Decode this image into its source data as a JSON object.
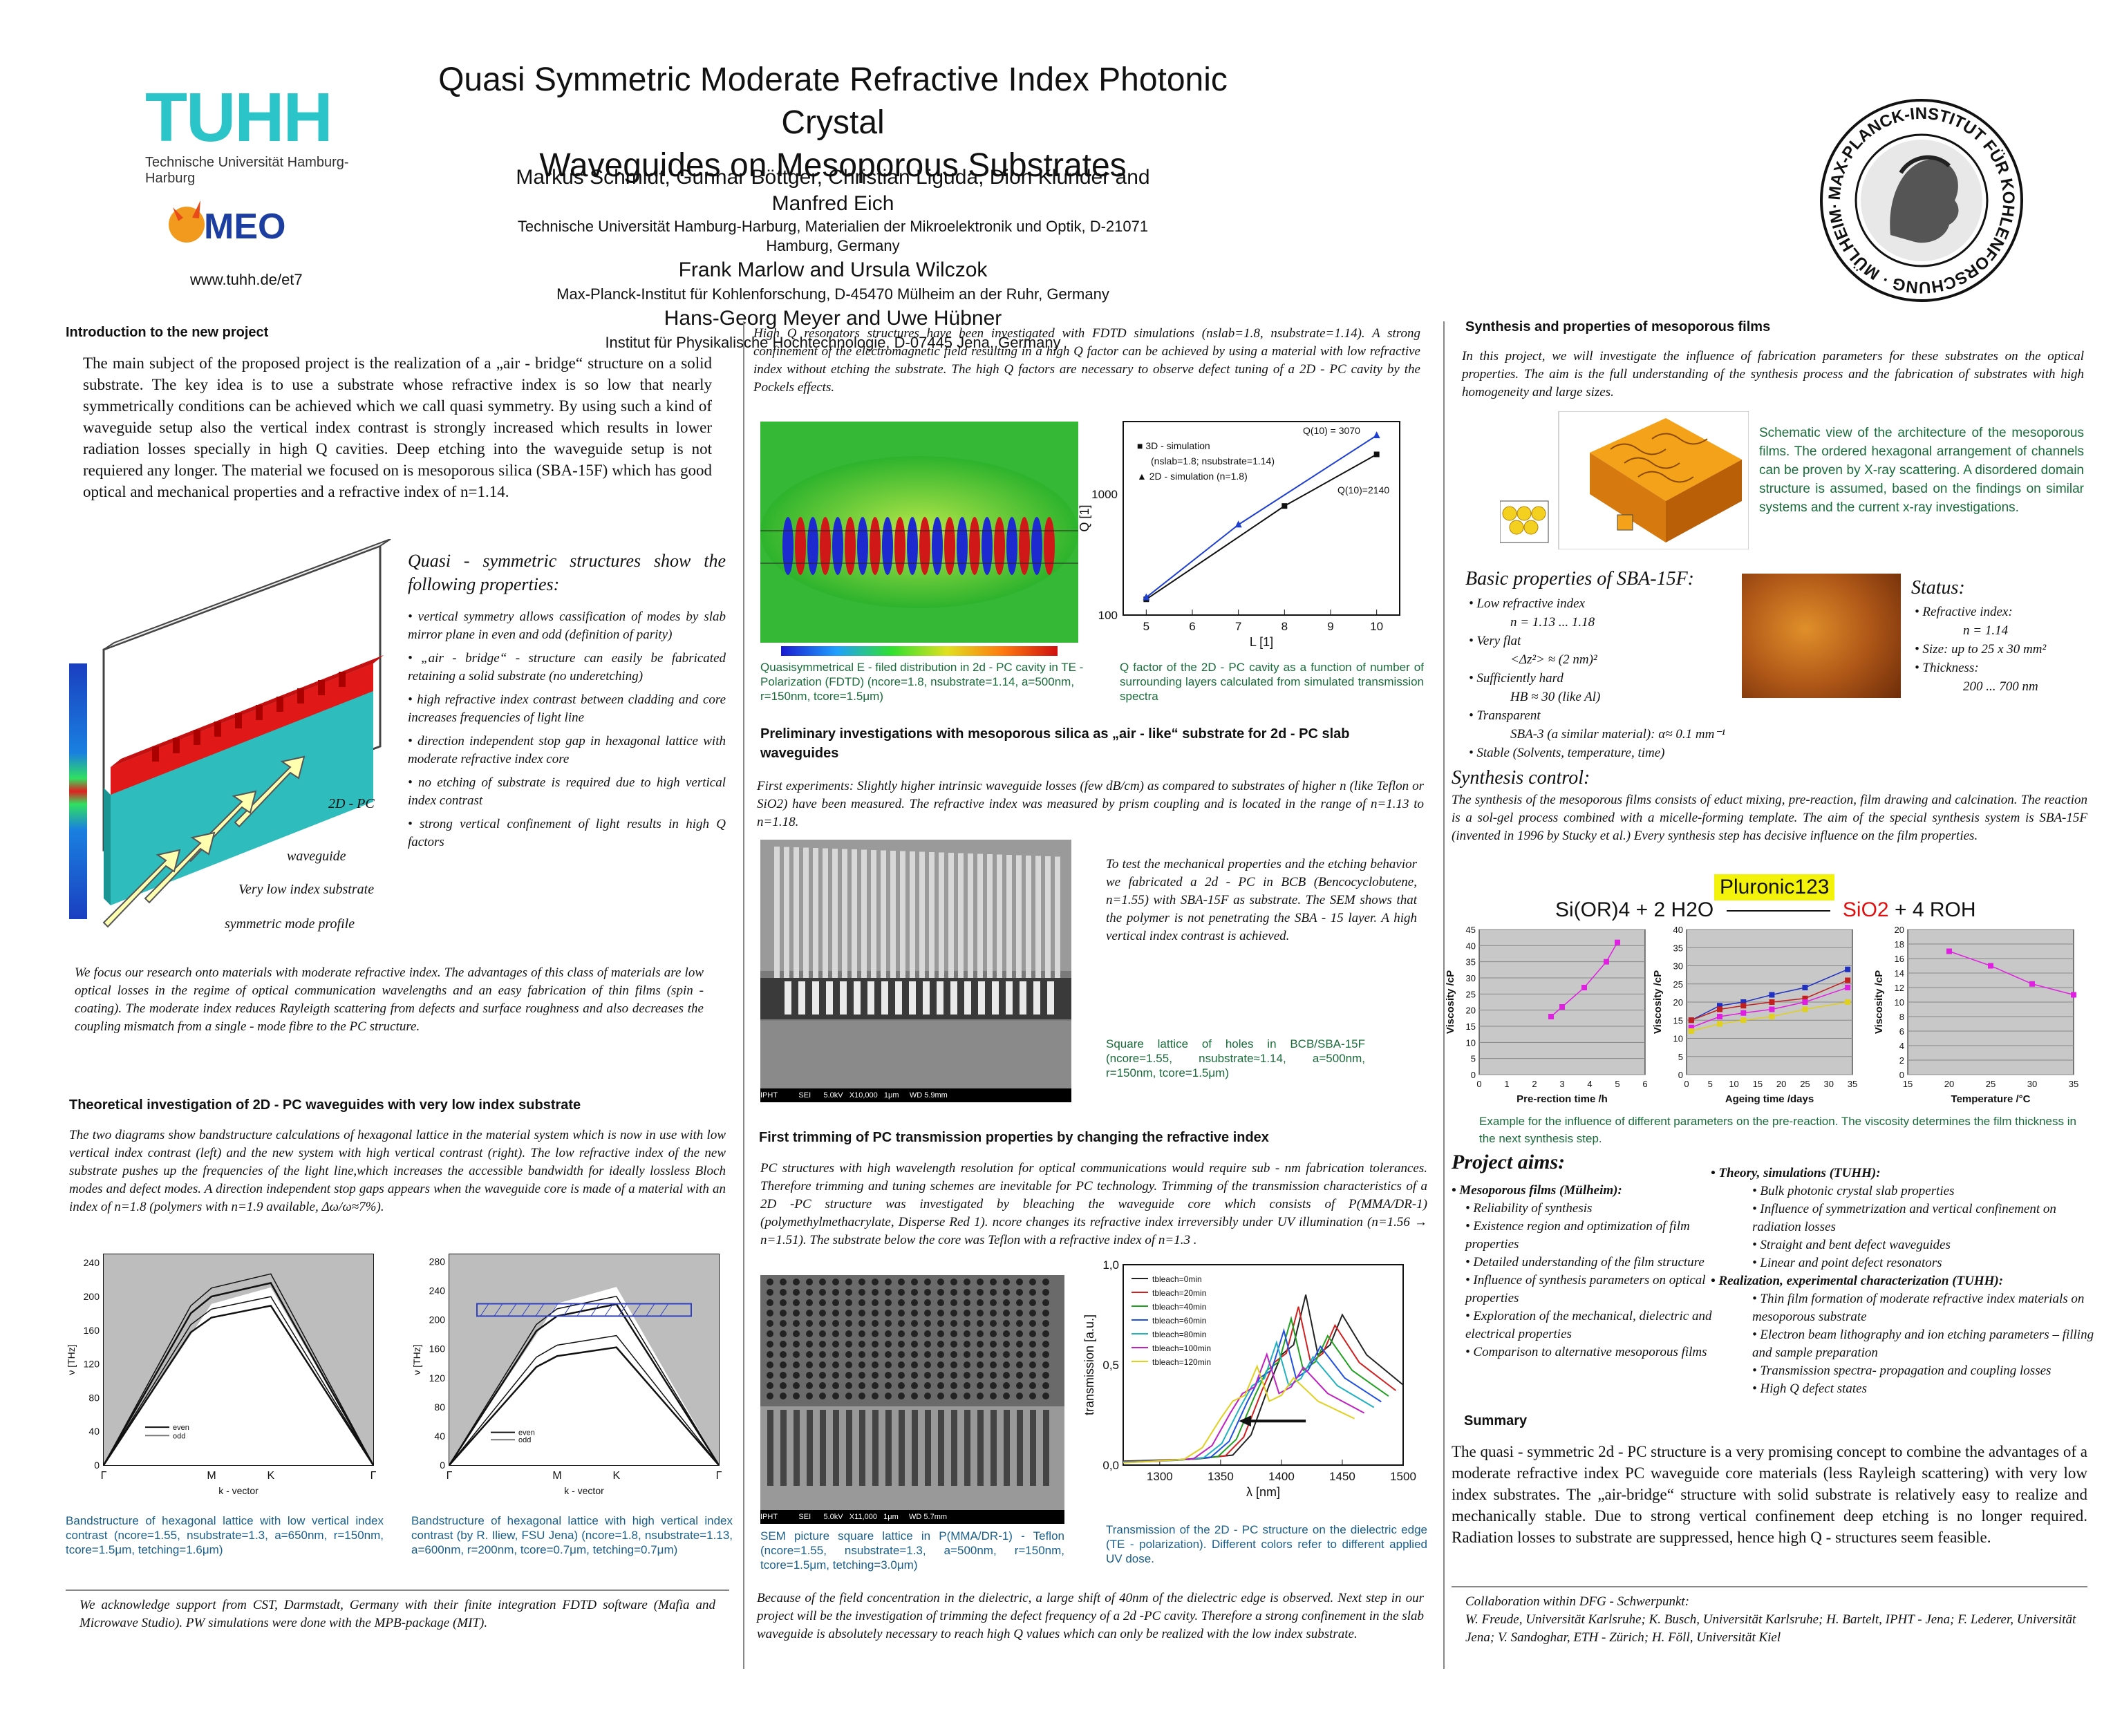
{
  "header": {
    "title_line1": "Quasi Symmetric Moderate Refractive Index Photonic Crystal",
    "title_line2": "Waveguides on Mesoporous Substrates",
    "authors1": "Markus Schmidt, Gunnar Böttger, Christian Liguda, Dion Klunder and Manfred Eich",
    "affil1": "Technische Universität Hamburg-Harburg, Materialien der Mikroelektronik und Optik, D-21071 Hamburg, Germany",
    "authors2": "Frank Marlow and Ursula Wilczok",
    "affil2": "Max-Planck-Institut für Kohlenforschung, D-45470 Mülheim an der Ruhr, Germany",
    "authors3": "Hans-Georg Meyer and Uwe Hübner",
    "affil3": "Institut für Physikalische Hochtechnologie, D-07445 Jena, Germany"
  },
  "logos": {
    "tuhh": "TUHH",
    "tuhh_sub": "Technische Universität Hamburg-Harburg",
    "meo": "MEO",
    "url": "www.tuhh.de/et7",
    "mpi_ring": "MAX-PLANCK-INSTITUT FÜR KOHLENFORSCHUNG · MÜLHEIM·RUHR ·"
  },
  "col1": {
    "intro_heading": "Introduction to the new project",
    "intro_text": "The main subject of the proposed project is the realization of a „air - bridge“ structure on a solid substrate. The key idea is to use a substrate whose refractive index is so low that nearly symmetrically conditions can be achieved which we call quasi symmetry. By using such a kind of waveguide setup also the vertical index contrast is strongly increased which results in lower radiation losses specially in high Q cavities. Deep etching into the waveguide setup is not requiered any longer. The material we focused on is mesoporous silica (SBA-15F) which has good optical and mechanical properties and a refractive index of n=1.14.",
    "quasi_heading": "Quasi - symmetric structures show the following properties:",
    "quasi_items": [
      "vertical symmetry allows cassification of modes by slab mirror plane in even and odd (definition of parity)",
      "„air - bridge“ - structure can easily be fabricated retaining a solid substrate (no underetching)",
      "high refractive index contrast between cladding and core increases frequencies of light line",
      "direction independent stop gap in hexagonal lattice with moderate refractive index core",
      "no etching of substrate is required due to high vertical index contrast",
      "strong vertical confinement of light results in high Q factors"
    ],
    "diagram_labels": {
      "pc": "2D - PC",
      "waveguide": "waveguide",
      "substrate": "Very low index substrate",
      "mode": "symmetric mode profile"
    },
    "focus_text": "We focus our research onto materials with moderate refractive index. The advantages of this class of materials are low optical losses in the regime of optical communication wavelengths and an easy fabrication of thin films (spin - coating). The moderate index reduces Rayleigth scattering from defects and surface roughness and also decreases the coupling mismatch from a single - mode fibre to the PC structure.",
    "theory_heading": "Theoretical investigation  of 2D - PC waveguides  with very low index substrate",
    "theory_text": "The two diagrams show bandstructure calculations of  hexagonal lattice in the material system which is now in use with low vertical index contrast (left) and the new system with high vertical contrast (right). The low refractive index of the new substrate pushes up the frequencies of the light line,which increases the accessible bandwidth for ideally lossless Bloch modes and defect modes. A direction independent stop gaps appears when the waveguide core is made of a material with an index of n=1.8 (polymers with n=1.9 available, Δω/ω≈7%).",
    "band_left_caption": "Bandstructure of hexagonal lattice with low vertical index contrast (ncore=1.55, nsubstrate=1.3, a=650nm, r=150nm, tcore=1.5μm, tetching=1.6μm)",
    "band_right_caption": "Bandstructure of hexagonal lattice with high vertical index contrast (by R. Iliew, FSU Jena) (ncore=1.8, nsubstrate=1.13, a=600nm, r=200nm, tcore=0.7μm, tetching=0.7μm)",
    "ack_text": "We acknowledge support from CST, Darmstadt, Germany with their finite integration FDTD software (Mafia and Microwave Studio). PW simulations were done with the MPB-package (MIT)."
  },
  "col2": {
    "fdtd_text": "High Q resonators structures have been investigated with FDTD simulations (nslab=1.8, nsubstrate=1.14). A strong confinement of the electromagnetic field resulting in a high Q factor can be achieved by using a material with low refractive index without etching the substrate. The high Q factors are necessary to observe defect tuning of a 2D - PC cavity by the Pockels effects.",
    "efield_caption": "Quasisymmetrical E - filed distribution in 2d - PC cavity in TE - Polarization (FDTD) (ncore=1.8, nsubstrate=1.14, a=500nm, r=150nm, tcore=1.5μm)",
    "q_caption": "Q factor of the 2D - PC cavity as a function of number of surrounding layers calculated from simulated transmission spectra",
    "prelim_heading": "Preliminary investigations with mesoporous silica as „air - like“ substrate for 2d - PC slab waveguides",
    "prelim_text": "First experiments: Slightly higher intrinsic waveguide losses (few dB/cm) as compared to substrates of higher n (like Teflon or SiO2) have been measured. The refractive index was measured by prism coupling and is located in the range of n=1.13 to n=1.18.",
    "bcb_text": "To test the mechanical properties and the etching behavior we fabricated a 2d - PC in BCB (Bencocyclobutene, n=1.55) with SBA-15F as substrate. The SEM shows that the polymer is not penetrating the SBA - 15 layer. A high vertical index contrast is achieved.",
    "sem1_caption": "Square lattice of holes in BCB/SBA-15F (ncore=1.55, nsubstrate≈1.14, a=500nm, r=150nm, tcore=1.5μm)",
    "sem1_bar": "IPHT          SEI      5.0kV   X10,000   1μm     WD 5.9mm",
    "trim_heading": "First trimming of PC transmission properties by changing the refractive index",
    "trim_text": "PC structures with high wavelength resolution for optical communications would require sub - nm fabrication tolerances. Therefore trimming and tuning schemes are inevitable for PC technology. Trimming of the transmission characteristics of a 2D -PC  structure was investigated by bleaching the waveguide core which consists of P(MMA/DR-1) (polymethylmethacrylate, Disperse Red 1). ncore changes its refractive index irreversibly under UV illumination (n=1.56 → n=1.51). The substrate below the core was Teflon with a refractive index of n=1.3 .",
    "sem2_caption": "SEM picture square lattice in P(MMA/DR-1) - Teflon (ncore=1.55, nsubstrate=1.3, a=500nm, r=150nm, tcore=1.5μm, tetching=3.0μm)",
    "sem2_bar": "IPHT          SEI      5.0kV   X11,000   1μm     WD 5.7mm",
    "trans_caption": "Transmission of the 2D - PC structure on the dielectric edge (TE - polarization). Different colors refer to different applied UV dose.",
    "final_text": "Because of the field concentration in the dielectric, a large shift of 40nm of the dielectric edge is observed. Next step in our project will be the investigation of trimming the defect frequency of a 2d -PC cavity. Therefore a strong confinement in the slab waveguide is absolutely necessary to reach high Q values which can only be realized with the low index substrate."
  },
  "col3": {
    "synth_heading": "Synthesis and properties of mesoporous films",
    "synth_text": "In this project, we will investigate the influence of fabrication parameters for these substrates on the optical properties. The aim is the full understanding of the synthesis process and the fabrication of substrates with high homogeneity and large sizes.",
    "schematic_text": "Schematic view of the architecture of the mesoporous films. The ordered hexagonal arrangement of channels can be proven by X-ray scattering. A disordered domain structure is assumed, based on the findings on similar systems and the current x-ray investigations.",
    "basic_heading": "Basic properties of SBA-15F:",
    "basic_items": [
      "Low refractive index",
      "n = 1.13 ... 1.18",
      "Very flat",
      "<Δz²> ≈ (2 nm)²",
      "Sufficiently hard",
      "HB ≈ 30 (like Al)",
      "Transparent",
      "SBA-3 (a similar material):  α≈ 0.1 mm⁻¹",
      "Stable (Solvents, temperature, time)"
    ],
    "status_heading": "Status:",
    "status_items": [
      "Refractive index:",
      "n = 1.14",
      "Size: up to 25 x 30 mm²",
      "Thickness:",
      "200 ... 700 nm"
    ],
    "synthctrl_heading": "Synthesis control:",
    "synthctrl_text": "The synthesis of the mesoporous films consists of educt mixing, pre-reaction, film drawing and calcination. The reaction is a sol-gel process combined with a micelle-forming template. The aim of the special synthesis system is SBA-15F (invented in 1996 by Stucky et al.) Every synthesis step has decisive influence on the film properties.",
    "reaction_catalyst": "Pluronic123",
    "reaction_left": "Si(OR)4 + 2 H2O",
    "reaction_right_red": "SiO2",
    "reaction_right_black": "+ 4 ROH",
    "visc_caption": "Example for the influence of different parameters on the pre-reaction. The viscosity determines the film thickness in the next synthesis step.",
    "aims_heading": "Project aims:",
    "aims_mp_heading": "Mesoporous films (Mülheim):",
    "aims_mp_items": [
      "Reliability of synthesis",
      "Existence region and optimization of film properties",
      "Detailed understanding of the film structure",
      "Influence of synthesis parameters on optical properties",
      "Exploration of the mechanical, dielectric and electrical properties",
      "Comparison to alternative mesoporous films"
    ],
    "aims_th_heading": "Theory, simulations (TUHH):",
    "aims_th_items": [
      "Bulk photonic crystal slab properties",
      "Influence of symmetrization and vertical confinement on radiation losses",
      "Straight and bent defect waveguides",
      "Linear and point defect resonators"
    ],
    "aims_re_heading": "Realization, experimental characterization (TUHH):",
    "aims_re_items": [
      "Thin film formation of moderate refractive index materials on mesoporous substrate",
      "Electron beam lithography and ion etching parameters – filling and sample preparation",
      "Transmission spectra- propagation and coupling losses",
      "High Q defect states"
    ],
    "summary_heading": "Summary",
    "summary_text": "The quasi - symmetric 2d - PC structure is a very promising concept to combine the advantages of a moderate refractive index PC waveguide core materials (less Rayleigh scattering) with very low index substrates. The „air-bridge“ structure with solid substrate is relatively easy to realize and mechanically stable. Due to strong vertical confinement deep etching is no longer required. Radiation losses to substrate are suppressed, hence high Q - structures seem feasible.",
    "collab_heading": "Collaboration within DFG - Schwerpunkt:",
    "collab_text": "W. Freude, Universität Karlsruhe; K. Busch, Universität Karlsruhe; H. Bartelt, IPHT - Jena; F. Lederer, Universität Jena; V. Sandoghar, ETH - Zürich; H. Föll, Universität Kiel"
  },
  "chart_data": [
    {
      "type": "line",
      "id": "q_factor",
      "xlabel": "L [1]",
      "ylabel": "Q [1]",
      "xlim": [
        4.5,
        10.5
      ],
      "ylim": [
        100,
        4000
      ],
      "yscale": "log",
      "xticks": [
        "5",
        "6",
        "7",
        "8",
        "9",
        "10"
      ],
      "yticks": [
        "100",
        "1000"
      ],
      "legend_items": [
        "3D - simulation",
        "(nslab=1.8; nsubstrate=1.14)",
        "2D - simulation (n=1.8)"
      ],
      "series": [
        {
          "name": "3D - simulation",
          "color": "#111111",
          "x": [
            5,
            8,
            10
          ],
          "y": [
            135,
            800,
            2140
          ]
        },
        {
          "name": "2D - simulation (n=1.8)",
          "color": "#1f3fd0",
          "x": [
            5,
            7,
            10
          ],
          "y": [
            140,
            560,
            3070
          ]
        }
      ],
      "annotations": [
        "Q(10) = 3070",
        "Q(10)=2140"
      ]
    },
    {
      "type": "line",
      "id": "transmission",
      "xlabel": "λ [nm]",
      "ylabel": "transmission [a.u.]",
      "xlim": [
        1270,
        1500
      ],
      "ylim": [
        0,
        1
      ],
      "xticks": [
        "1300",
        "1350",
        "1400",
        "1450",
        "1500"
      ],
      "yticks": [
        "0,0",
        "0,5",
        "1,0"
      ],
      "legend": [
        "tbleach=0min",
        "tbleach=20min",
        "tbleach=40min",
        "tbleach=60min",
        "tbleach=80min",
        "tbleach=100min",
        "tbleach=120min"
      ],
      "colors": [
        "#222222",
        "#d02020",
        "#20a020",
        "#2050e0",
        "#20b0c0",
        "#c020c0",
        "#e0d020"
      ],
      "shift_nm": [
        0,
        6,
        12,
        18,
        24,
        32,
        40
      ],
      "base_x": [
        1270,
        1330,
        1360,
        1375,
        1390,
        1400,
        1410,
        1420,
        1430,
        1440,
        1450,
        1460,
        1470,
        1480,
        1490,
        1500
      ],
      "base_y": [
        0.02,
        0.03,
        0.05,
        0.15,
        0.4,
        0.55,
        0.6,
        0.85,
        0.55,
        0.6,
        0.75,
        0.65,
        0.55,
        0.5,
        0.45,
        0.4
      ]
    },
    {
      "type": "scatter",
      "id": "visc_prereaction",
      "xlabel": "Pre-rection time /h",
      "ylabel": "Viscosity /cP",
      "xlim": [
        0,
        6
      ],
      "ylim": [
        0,
        45
      ],
      "xticks": [
        "0",
        "1",
        "2",
        "3",
        "4",
        "5",
        "6"
      ],
      "yticks": [
        "0",
        "5",
        "10",
        "15",
        "20",
        "25",
        "30",
        "35",
        "40",
        "45"
      ],
      "color": "#e020e0",
      "x": [
        2.6,
        3,
        3.8,
        4.6,
        5
      ],
      "y": [
        18,
        21,
        27,
        35,
        41
      ]
    },
    {
      "type": "scatter",
      "id": "visc_ageing",
      "xlabel": "Ageing time /days",
      "ylabel": "Viscosity /cP",
      "xlim": [
        0,
        35
      ],
      "ylim": [
        0,
        40
      ],
      "xticks": [
        "0",
        "5",
        "10",
        "15",
        "20",
        "25",
        "30",
        "35"
      ],
      "yticks": [
        "0",
        "5",
        "10",
        "15",
        "20",
        "25",
        "30",
        "35",
        "40"
      ],
      "series": [
        {
          "color": "#2030c0",
          "x": [
            1,
            7,
            12,
            18,
            25,
            34
          ],
          "y": [
            15,
            19,
            20,
            22,
            24,
            29
          ]
        },
        {
          "color": "#c02020",
          "x": [
            1,
            7,
            12,
            18,
            25,
            34
          ],
          "y": [
            15,
            18,
            19,
            20,
            21,
            26
          ]
        },
        {
          "color": "#e020e0",
          "x": [
            1,
            7,
            12,
            18,
            25,
            34
          ],
          "y": [
            13,
            16,
            17,
            18,
            20,
            24
          ]
        },
        {
          "color": "#e0d020",
          "x": [
            1,
            7,
            12,
            18,
            25,
            34
          ],
          "y": [
            12,
            14,
            15,
            16,
            18,
            20
          ]
        }
      ]
    },
    {
      "type": "scatter",
      "id": "visc_temperature",
      "xlabel": "Temperature /°C",
      "ylabel": "Viscosity /cP",
      "xlim": [
        15,
        35
      ],
      "ylim": [
        0,
        20
      ],
      "xticks": [
        "15",
        "20",
        "25",
        "30",
        "35"
      ],
      "yticks": [
        "0",
        "2",
        "4",
        "6",
        "8",
        "10",
        "12",
        "14",
        "16",
        "18",
        "20"
      ],
      "color": "#e020e0",
      "x": [
        20,
        25,
        30,
        35
      ],
      "y": [
        17,
        15,
        12.5,
        11
      ]
    },
    {
      "type": "line",
      "id": "band_left",
      "xlabel": "k - vector",
      "ylabel": "ν [THz]",
      "ylim": [
        0,
        250
      ],
      "yticks": [
        "0",
        "40",
        "80",
        "120",
        "160",
        "200",
        "240"
      ],
      "xticks": [
        "Γ",
        "M",
        "K",
        "Γ"
      ],
      "legend": [
        "even",
        "odd"
      ]
    },
    {
      "type": "line",
      "id": "band_right",
      "xlabel": "k - vector",
      "ylabel": "ν [THz]",
      "ylim": [
        0,
        290
      ],
      "yticks": [
        "0",
        "40",
        "80",
        "120",
        "160",
        "200",
        "240",
        "280"
      ],
      "xticks": [
        "Γ",
        "M",
        "K",
        "Γ"
      ],
      "legend": [
        "even",
        "odd"
      ]
    }
  ]
}
